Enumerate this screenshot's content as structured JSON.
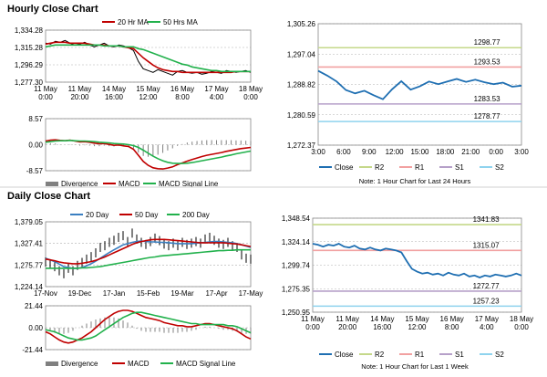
{
  "hourly": {
    "title": "Hourly Close Chart",
    "price": {
      "type": "line",
      "legend": [
        "20 Hr MA",
        "50 Hrs MA"
      ],
      "yticks": [
        "1,334.28",
        "1,315.28",
        "1,296.29",
        "1,277.30"
      ],
      "yrange": [
        1277.3,
        1334.28
      ],
      "xticks": [
        [
          "11 May",
          "0:00"
        ],
        [
          "11 May",
          "20:00"
        ],
        [
          "14 May",
          "16:00"
        ],
        [
          "15 May",
          "12:00"
        ],
        [
          "16 May",
          "8:00"
        ],
        [
          "17 May",
          "4:00"
        ],
        [
          "18 May",
          "0:00"
        ]
      ],
      "series": [
        {
          "name": "Close",
          "color": "#000000",
          "values": [
            1320,
            1319,
            1322,
            1321,
            1323,
            1320,
            1318,
            1319,
            1321,
            1318,
            1316,
            1318,
            1320,
            1317,
            1316,
            1318,
            1317,
            1315,
            1312,
            1300,
            1292,
            1290,
            1288,
            1291,
            1289,
            1287,
            1285,
            1289,
            1290,
            1288,
            1287,
            1288,
            1286,
            1287,
            1289,
            1288,
            1287,
            1290,
            1289,
            1288,
            1289,
            1290,
            1288
          ]
        },
        {
          "name": "20 Hr MA",
          "color": "#c00000",
          "values": [
            1319,
            1320,
            1321,
            1321,
            1321,
            1320,
            1320,
            1320,
            1320,
            1319,
            1318,
            1318,
            1318,
            1317,
            1317,
            1317,
            1316,
            1315,
            1314,
            1309,
            1304,
            1300,
            1296,
            1293,
            1291,
            1290,
            1289,
            1289,
            1288,
            1288,
            1288,
            1288,
            1288,
            1288,
            1288,
            1288,
            1288,
            1288,
            1288,
            1289,
            1289,
            1289,
            1289
          ]
        },
        {
          "name": "50 Hrs MA",
          "color": "#22b14c",
          "values": [
            1316,
            1317,
            1318,
            1318,
            1318,
            1318,
            1318,
            1318,
            1318,
            1318,
            1318,
            1318,
            1317,
            1317,
            1317,
            1317,
            1316,
            1316,
            1316,
            1314,
            1313,
            1311,
            1309,
            1307,
            1305,
            1303,
            1301,
            1299,
            1297,
            1296,
            1294,
            1293,
            1292,
            1291,
            1290,
            1290,
            1289,
            1289,
            1289,
            1289,
            1289,
            1289,
            1289
          ]
        }
      ]
    },
    "macd": {
      "type": "bar",
      "yticks": [
        "8.57",
        "0.00",
        "-8.57"
      ],
      "yrange": [
        -8.57,
        8.57
      ],
      "legend": [
        "Divergence",
        "MACD",
        "MACD Signal Line"
      ],
      "macd": [
        1.2,
        1.5,
        1.6,
        1.4,
        1.3,
        1.5,
        1.2,
        0.9,
        1.0,
        0.8,
        0.5,
        0.3,
        0.4,
        0.1,
        -0.2,
        -0.1,
        -0.4,
        -0.6,
        -1.5,
        -3.5,
        -5.5,
        -6.8,
        -7.6,
        -7.9,
        -8.0,
        -7.7,
        -7.3,
        -6.6,
        -6.0,
        -5.4,
        -4.9,
        -4.4,
        -3.9,
        -3.5,
        -3.2,
        -2.9,
        -2.6,
        -2.2,
        -1.9,
        -1.6,
        -1.3,
        -1.1,
        -0.9
      ],
      "signal": [
        0.8,
        1.0,
        1.2,
        1.3,
        1.3,
        1.4,
        1.3,
        1.2,
        1.2,
        1.1,
        1.0,
        0.8,
        0.7,
        0.6,
        0.4,
        0.3,
        0.2,
        0.0,
        -0.3,
        -0.9,
        -1.8,
        -2.8,
        -3.8,
        -4.6,
        -5.3,
        -5.8,
        -6.1,
        -6.2,
        -6.2,
        -6.1,
        -5.9,
        -5.6,
        -5.3,
        -5.0,
        -4.7,
        -4.4,
        -4.1,
        -3.7,
        -3.4,
        -3.0,
        -2.7,
        -2.4,
        -2.1
      ],
      "divergence": [
        0.4,
        0.5,
        0.4,
        0.1,
        0.0,
        0.1,
        -0.1,
        -0.3,
        -0.2,
        -0.3,
        -0.5,
        -0.5,
        -0.3,
        -0.5,
        -0.6,
        -0.4,
        -0.6,
        -0.6,
        -1.2,
        -2.6,
        -3.7,
        -4.0,
        -3.8,
        -3.3,
        -2.7,
        -1.9,
        -1.2,
        -0.4,
        0.2,
        0.7,
        1.0,
        1.2,
        1.4,
        1.5,
        1.5,
        1.5,
        1.5,
        1.5,
        1.5,
        1.4,
        1.4,
        1.3,
        1.2
      ]
    },
    "pivot": {
      "type": "line",
      "yticks": [
        "1,305.26",
        "1,297.04",
        "1,288.82",
        "1,280.59",
        "1,272.37"
      ],
      "yrange": [
        1272.37,
        1305.26
      ],
      "xticks": [
        "3:00",
        "6:00",
        "9:00",
        "12:00",
        "15:00",
        "18:00",
        "21:00",
        "0:00",
        "3:00"
      ],
      "close": [
        1292.5,
        1291.2,
        1289.6,
        1287.3,
        1286.4,
        1287.1,
        1285.9,
        1284.8,
        1287.5,
        1289.7,
        1287.4,
        1288.3,
        1289.6,
        1288.9,
        1289.6,
        1290.3,
        1289.5,
        1290.1,
        1289.4,
        1288.9,
        1289.3,
        1288.2,
        1288.5
      ],
      "levels": [
        {
          "name": "R2",
          "value": 1298.77,
          "label": "1298.77",
          "color": "#c5d88a"
        },
        {
          "name": "R1",
          "value": 1293.53,
          "label": "1293.53",
          "color": "#f2a1a1"
        },
        {
          "name": "S1",
          "value": 1283.53,
          "label": "1283.53",
          "color": "#b6a0c9"
        },
        {
          "name": "S2",
          "value": 1278.77,
          "label": "1278.77",
          "color": "#8fd3ee"
        }
      ],
      "legend": [
        "Close",
        "R2",
        "R1",
        "S1",
        "S2"
      ],
      "note": "Note: 1 Hour Chart for Last 24 Hours"
    }
  },
  "daily": {
    "title": "Daily Close Chart",
    "price": {
      "type": "line",
      "legend": [
        "20 Day",
        "50 Day",
        "200 Day"
      ],
      "yticks": [
        "1,379.05",
        "1,327.41",
        "1,275.77",
        "1,224.14"
      ],
      "yrange": [
        1224.14,
        1379.05
      ],
      "xticks": [
        "17-Nov",
        "19-Dec",
        "17-Jan",
        "15-Feb",
        "19-Mar",
        "17-Apr",
        "17-May"
      ],
      "close": [
        1283,
        1279,
        1272,
        1262,
        1255,
        1268,
        1262,
        1275,
        1282,
        1290,
        1296,
        1305,
        1318,
        1322,
        1330,
        1335,
        1342,
        1346,
        1332,
        1352,
        1338,
        1330,
        1325,
        1332,
        1340,
        1334,
        1326,
        1322,
        1328,
        1322,
        1330,
        1325,
        1328,
        1332,
        1328,
        1338,
        1342,
        1335,
        1328,
        1325,
        1330,
        1322,
        1318,
        1300,
        1292,
        1290
      ],
      "series": [
        {
          "name": "20 Day",
          "color": "#3a7fc1",
          "values": [
            1292,
            1288,
            1284,
            1278,
            1272,
            1270,
            1268,
            1268,
            1270,
            1274,
            1279,
            1285,
            1292,
            1299,
            1306,
            1312,
            1318,
            1324,
            1327,
            1330,
            1332,
            1333,
            1332,
            1331,
            1331,
            1330,
            1330,
            1329,
            1328,
            1327,
            1327,
            1327,
            1327,
            1328,
            1329,
            1330,
            1331,
            1332,
            1332,
            1331,
            1330,
            1329,
            1327,
            1324,
            1321,
            1318
          ]
        },
        {
          "name": "50 Day",
          "color": "#c00000",
          "values": [
            1290,
            1288,
            1286,
            1283,
            1281,
            1280,
            1279,
            1279,
            1280,
            1282,
            1284,
            1287,
            1291,
            1295,
            1300,
            1305,
            1310,
            1315,
            1320,
            1325,
            1329,
            1332,
            1334,
            1336,
            1337,
            1337,
            1337,
            1336,
            1335,
            1334,
            1333,
            1332,
            1331,
            1330,
            1329,
            1329,
            1329,
            1329,
            1329,
            1329,
            1328,
            1327,
            1326,
            1324,
            1322,
            1320
          ]
        },
        {
          "name": "200 Day",
          "color": "#22b14c",
          "values": [
            1268,
            1268,
            1268,
            1268,
            1268,
            1268,
            1268,
            1268,
            1269,
            1269,
            1270,
            1271,
            1272,
            1274,
            1276,
            1278,
            1280,
            1282,
            1284,
            1286,
            1288,
            1290,
            1292,
            1294,
            1295,
            1297,
            1298,
            1299,
            1300,
            1301,
            1302,
            1303,
            1304,
            1305,
            1306,
            1307,
            1308,
            1309,
            1310,
            1310,
            1311,
            1311,
            1312,
            1312,
            1312,
            1312
          ]
        }
      ]
    },
    "macd": {
      "type": "bar",
      "yticks": [
        "21.44",
        "0.00",
        "-21.44"
      ],
      "yrange": [
        -21.44,
        21.44
      ],
      "legend": [
        "Divergence",
        "MACD",
        "MACD Signal Line"
      ],
      "macd": [
        -4,
        -6,
        -9,
        -12,
        -14,
        -15,
        -14,
        -12,
        -10,
        -7,
        -4,
        0,
        4,
        8,
        11,
        14,
        16,
        17,
        17,
        16,
        14,
        12,
        10,
        9,
        8,
        7,
        5,
        4,
        3,
        2,
        2,
        1,
        1,
        2,
        3,
        4,
        4,
        3,
        2,
        1,
        0,
        -1,
        -3,
        -6,
        -9,
        -11
      ],
      "signal": [
        -2,
        -3,
        -4,
        -6,
        -8,
        -10,
        -11,
        -12,
        -12,
        -11,
        -10,
        -8,
        -5,
        -2,
        1,
        4,
        7,
        10,
        12,
        14,
        15,
        15,
        14,
        13,
        12,
        11,
        10,
        9,
        8,
        7,
        6,
        5,
        4,
        4,
        3,
        3,
        3,
        3,
        3,
        3,
        2,
        2,
        1,
        -1,
        -3,
        -5
      ],
      "divergence": [
        -2,
        -3,
        -5,
        -6,
        -6,
        -5,
        -3,
        0,
        2,
        4,
        6,
        8,
        9,
        10,
        10,
        10,
        9,
        7,
        5,
        2,
        -1,
        -3,
        -4,
        -4,
        -4,
        -4,
        -5,
        -5,
        -5,
        -5,
        -4,
        -4,
        -3,
        -2,
        0,
        1,
        1,
        0,
        -1,
        -2,
        -2,
        -3,
        -4,
        -5,
        -6,
        -6
      ]
    },
    "pivot": {
      "type": "line",
      "yticks": [
        "1,348.54",
        "1,324.14",
        "1,299.74",
        "1,275.35",
        "1,250.95"
      ],
      "yrange": [
        1250.95,
        1348.54
      ],
      "xticks": [
        [
          "11 May",
          "0:00"
        ],
        [
          "11 May",
          "20:00"
        ],
        [
          "14 May",
          "16:00"
        ],
        [
          "15 May",
          "12:00"
        ],
        [
          "16 May",
          "8:00"
        ],
        [
          "17 May",
          "4:00"
        ],
        [
          "18 May",
          "0:00"
        ]
      ],
      "close": [
        1322,
        1321,
        1319,
        1321,
        1320,
        1322,
        1319,
        1318,
        1320,
        1317,
        1316,
        1318,
        1316,
        1315,
        1317,
        1316,
        1315,
        1313,
        1304,
        1296,
        1293,
        1291,
        1292,
        1290,
        1291,
        1289,
        1292,
        1290,
        1289,
        1291,
        1288,
        1289,
        1287,
        1289,
        1288,
        1290,
        1289,
        1288,
        1289,
        1291,
        1289
      ],
      "levels": [
        {
          "name": "R2",
          "value": 1341.83,
          "label": "1341.83",
          "color": "#c5d88a"
        },
        {
          "name": "R1",
          "value": 1315.07,
          "label": "1315.07",
          "color": "#f2a1a1"
        },
        {
          "name": "S1",
          "value": 1272.77,
          "label": "1272.77",
          "color": "#b6a0c9"
        },
        {
          "name": "S2",
          "value": 1257.23,
          "label": "1257.23",
          "color": "#8fd3ee"
        }
      ],
      "legend": [
        "Close",
        "R2",
        "R1",
        "S1",
        "S2"
      ],
      "note": "Note: 1 Hour Chart for Last 1 Week"
    }
  },
  "colors": {
    "close": "#1f6fb2",
    "divergence": "#808080",
    "macd": "#c00000",
    "signal": "#22b14c",
    "grid": "#b0b0b0"
  }
}
